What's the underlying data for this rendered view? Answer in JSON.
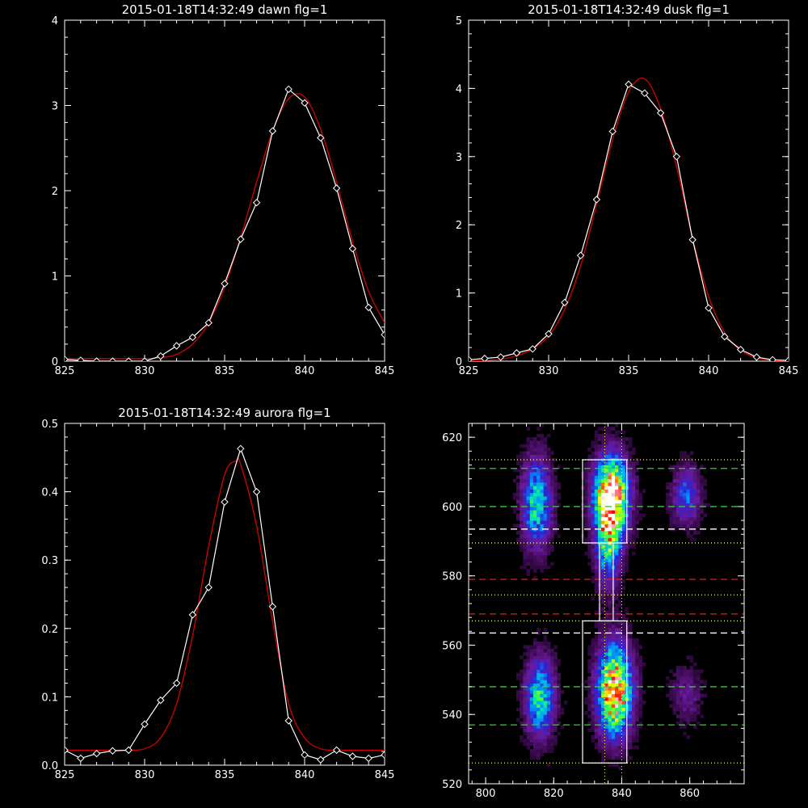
{
  "chart_data": [
    {
      "type": "line",
      "title": "2015-01-18T14:32:49 dawn flg=1",
      "xlabel": "",
      "ylabel": "",
      "xlim": [
        825,
        845
      ],
      "ylim": [
        0,
        4
      ],
      "xticks": [
        825,
        830,
        835,
        840,
        845
      ],
      "yticks": [
        0,
        1,
        2,
        3,
        4
      ],
      "series": [
        {
          "kind": "observed",
          "color": "#ffffff",
          "x": [
            825,
            826,
            827,
            828,
            829,
            830,
            831,
            832,
            833,
            834,
            835,
            836,
            837,
            838,
            839,
            840,
            841,
            842,
            843,
            844,
            845
          ],
          "y": [
            0.02,
            0.01,
            0.0,
            0.0,
            0.0,
            0.0,
            0.06,
            0.18,
            0.28,
            0.45,
            0.91,
            1.43,
            1.86,
            2.7,
            3.19,
            3.03,
            2.62,
            2.03,
            1.32,
            0.63,
            0.31
          ]
        },
        {
          "kind": "fit",
          "color": "#cc0000",
          "x": [
            825,
            826,
            827,
            828,
            829,
            830,
            831,
            832,
            833,
            834,
            835,
            836,
            837,
            838,
            839,
            840,
            841,
            842,
            843,
            844,
            845
          ],
          "y": [
            0.03,
            0.03,
            0.03,
            0.03,
            0.03,
            0.03,
            0.04,
            0.08,
            0.2,
            0.45,
            0.87,
            1.45,
            2.1,
            2.7,
            3.08,
            3.1,
            2.72,
            2.1,
            1.4,
            0.82,
            0.45
          ]
        }
      ]
    },
    {
      "type": "line",
      "title": "2015-01-18T14:32:49 dusk flg=1",
      "xlabel": "",
      "ylabel": "",
      "xlim": [
        825,
        845
      ],
      "ylim": [
        0,
        5
      ],
      "xticks": [
        825,
        830,
        835,
        840,
        845
      ],
      "yticks": [
        0,
        1,
        2,
        3,
        4,
        5
      ],
      "series": [
        {
          "kind": "observed",
          "color": "#ffffff",
          "x": [
            825,
            826,
            827,
            828,
            829,
            830,
            831,
            832,
            833,
            834,
            835,
            836,
            837,
            838,
            839,
            840,
            841,
            842,
            843,
            844,
            845
          ],
          "y": [
            0.02,
            0.04,
            0.06,
            0.12,
            0.18,
            0.4,
            0.86,
            1.55,
            2.37,
            3.37,
            4.06,
            3.93,
            3.64,
            3.0,
            1.78,
            0.78,
            0.36,
            0.17,
            0.06,
            0.02,
            0.01
          ]
        },
        {
          "kind": "fit",
          "color": "#cc0000",
          "x": [
            825,
            826,
            827,
            828,
            829,
            830,
            831,
            832,
            833,
            834,
            835,
            836,
            837,
            838,
            839,
            840,
            841,
            842,
            843,
            844,
            845
          ],
          "y": [
            0.0,
            0.01,
            0.03,
            0.08,
            0.18,
            0.37,
            0.76,
            1.4,
            2.3,
            3.25,
            3.95,
            4.14,
            3.7,
            2.85,
            1.8,
            0.95,
            0.42,
            0.16,
            0.05,
            0.01,
            0.0
          ]
        }
      ]
    },
    {
      "type": "line",
      "title": "2015-01-18T14:32:49 aurora flg=1",
      "xlabel": "",
      "ylabel": "",
      "xlim": [
        825,
        845
      ],
      "ylim": [
        0,
        0.5
      ],
      "xticks": [
        825,
        830,
        835,
        840,
        845
      ],
      "yticks": [
        0.0,
        0.1,
        0.2,
        0.3,
        0.4,
        0.5
      ],
      "ytick_labels": [
        "0.0",
        "0.1",
        "0.2",
        "0.3",
        "0.4",
        "0.5"
      ],
      "series": [
        {
          "kind": "observed",
          "color": "#ffffff",
          "x": [
            825,
            826,
            827,
            828,
            829,
            830,
            831,
            832,
            833,
            834,
            835,
            836,
            837,
            838,
            839,
            840,
            841,
            842,
            843,
            844,
            845
          ],
          "y": [
            0.022,
            0.01,
            0.017,
            0.021,
            0.022,
            0.06,
            0.095,
            0.12,
            0.22,
            0.26,
            0.385,
            0.463,
            0.4,
            0.232,
            0.065,
            0.015,
            0.008,
            0.022,
            0.013,
            0.01,
            0.015
          ]
        },
        {
          "kind": "fit",
          "color": "#cc0000",
          "x": [
            825,
            826,
            827,
            828,
            829,
            830,
            831,
            832,
            833,
            834,
            835,
            835.7,
            836,
            837,
            838,
            839,
            840,
            841,
            842,
            843,
            844,
            845
          ],
          "y": [
            0.022,
            0.022,
            0.022,
            0.022,
            0.022,
            0.024,
            0.04,
            0.09,
            0.19,
            0.32,
            0.425,
            0.445,
            0.44,
            0.35,
            0.21,
            0.09,
            0.04,
            0.024,
            0.022,
            0.022,
            0.022,
            0.022
          ]
        }
      ]
    },
    {
      "type": "heatmap",
      "title": "",
      "xlabel": "",
      "ylabel": "",
      "xlim": [
        795,
        876
      ],
      "ylim": [
        520,
        624
      ],
      "xticks": [
        800,
        820,
        840,
        860
      ],
      "yticks": [
        520,
        540,
        560,
        580,
        600,
        620
      ],
      "colorscale": [
        "#000000",
        "#3a0a4e",
        "#6a1a9a",
        "#3020d0",
        "#0090ff",
        "#00e0c0",
        "#40ff40",
        "#ffff00",
        "#ff0000",
        "#ffffff"
      ],
      "blobs": [
        {
          "x": 815,
          "y": 601,
          "sx": 3.0,
          "sy": 9,
          "amp": 0.55
        },
        {
          "x": 816,
          "y": 545,
          "sx": 3.0,
          "sy": 8,
          "amp": 0.55
        },
        {
          "x": 837,
          "y": 603,
          "sx": 3.5,
          "sy": 8,
          "amp": 1.0
        },
        {
          "x": 836,
          "y": 589,
          "sx": 2.5,
          "sy": 9,
          "amp": 0.45
        },
        {
          "x": 838,
          "y": 547,
          "sx": 3.5,
          "sy": 9,
          "amp": 0.95
        },
        {
          "x": 859,
          "y": 603,
          "sx": 3.0,
          "sy": 6,
          "amp": 0.35
        },
        {
          "x": 859,
          "y": 546,
          "sx": 3.0,
          "sy": 6,
          "amp": 0.18
        }
      ],
      "boxes": [
        {
          "x0": 828.5,
          "x1": 841.5,
          "y0": 589.5,
          "y1": 613.5,
          "color": "#ffffff"
        },
        {
          "x0": 828.5,
          "x1": 841.5,
          "y0": 526,
          "y1": 567,
          "color": "#ffffff"
        },
        {
          "x0": 833.5,
          "x1": 837.5,
          "y0": 567,
          "y1": 589.5,
          "color": "#ffffff"
        }
      ],
      "hlines": [
        {
          "y": 611,
          "color": "#32cd32",
          "style": "dashed"
        },
        {
          "y": 600,
          "color": "#32cd32",
          "style": "dashed"
        },
        {
          "y": 593.5,
          "color": "#ffffff",
          "style": "dashed"
        },
        {
          "y": 589.5,
          "color": "#ffff80",
          "style": "dotted"
        },
        {
          "y": 613.5,
          "color": "#ffff80",
          "style": "dotted"
        },
        {
          "y": 579,
          "color": "#dd2020",
          "style": "dashed"
        },
        {
          "y": 574.5,
          "color": "#ffff80",
          "style": "dotted"
        },
        {
          "y": 569,
          "color": "#dd2020",
          "style": "dashed"
        },
        {
          "y": 567,
          "color": "#ffff80",
          "style": "dotted"
        },
        {
          "y": 563.5,
          "color": "#ffffff",
          "style": "dashed"
        },
        {
          "y": 548,
          "color": "#32cd32",
          "style": "dashed"
        },
        {
          "y": 537,
          "color": "#32cd32",
          "style": "dashed"
        },
        {
          "y": 526,
          "color": "#ffff80",
          "style": "dotted"
        }
      ],
      "vlines": [
        {
          "x": 835,
          "color": "#ffff80",
          "style": "dotted"
        },
        {
          "x": 840,
          "color": "#ffff80",
          "style": "dotted"
        }
      ]
    }
  ]
}
